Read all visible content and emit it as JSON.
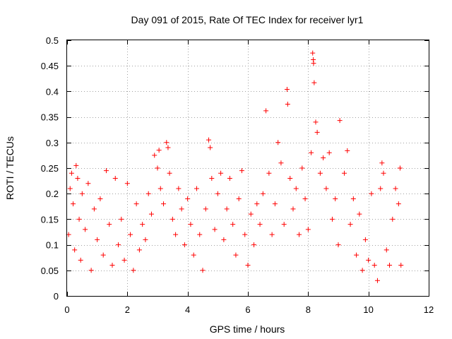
{
  "chart_data": {
    "type": "scatter",
    "title": "Day 091 of 2015, Rate Of TEC Index for receiver lyr1",
    "xlabel": "GPS time / hours",
    "ylabel": "ROTI / TECUs",
    "xlim": [
      0,
      12
    ],
    "ylim": [
      0,
      0.5
    ],
    "xticks": [
      0,
      2,
      4,
      6,
      8,
      10,
      12
    ],
    "xtick_labels": [
      "0",
      "2",
      "4",
      "6",
      "8",
      "10",
      "12"
    ],
    "yticks": [
      0,
      0.05,
      0.1,
      0.15,
      0.2,
      0.25,
      0.3,
      0.35,
      0.4,
      0.45,
      0.5
    ],
    "ytick_labels": [
      "0",
      "0.05",
      "0.1",
      "0.15",
      "0.2",
      "0.25",
      "0.3",
      "0.35",
      "0.4",
      "0.45",
      "0.5"
    ],
    "grid": true,
    "marker": "plus",
    "color": "#ff0000",
    "series": [
      {
        "name": "lyr1",
        "points": [
          [
            0.05,
            0.12
          ],
          [
            0.1,
            0.21
          ],
          [
            0.15,
            0.24
          ],
          [
            0.2,
            0.18
          ],
          [
            0.25,
            0.09
          ],
          [
            0.3,
            0.255
          ],
          [
            0.35,
            0.23
          ],
          [
            0.4,
            0.15
          ],
          [
            0.45,
            0.07
          ],
          [
            0.5,
            0.2
          ],
          [
            0.6,
            0.13
          ],
          [
            0.7,
            0.22
          ],
          [
            0.8,
            0.05
          ],
          [
            0.9,
            0.17
          ],
          [
            1.0,
            0.11
          ],
          [
            1.1,
            0.19
          ],
          [
            1.2,
            0.08
          ],
          [
            1.3,
            0.245
          ],
          [
            1.4,
            0.14
          ],
          [
            1.5,
            0.06
          ],
          [
            1.6,
            0.23
          ],
          [
            1.7,
            0.1
          ],
          [
            1.8,
            0.15
          ],
          [
            1.9,
            0.07
          ],
          [
            2.0,
            0.22
          ],
          [
            2.1,
            0.12
          ],
          [
            2.2,
            0.05
          ],
          [
            2.3,
            0.18
          ],
          [
            2.4,
            0.09
          ],
          [
            2.5,
            0.14
          ],
          [
            2.6,
            0.11
          ],
          [
            2.7,
            0.2
          ],
          [
            2.8,
            0.16
          ],
          [
            2.9,
            0.275
          ],
          [
            3.0,
            0.25
          ],
          [
            3.05,
            0.285
          ],
          [
            3.1,
            0.21
          ],
          [
            3.2,
            0.18
          ],
          [
            3.3,
            0.3
          ],
          [
            3.35,
            0.29
          ],
          [
            3.4,
            0.24
          ],
          [
            3.5,
            0.15
          ],
          [
            3.6,
            0.12
          ],
          [
            3.7,
            0.21
          ],
          [
            3.8,
            0.17
          ],
          [
            3.9,
            0.1
          ],
          [
            4.0,
            0.19
          ],
          [
            4.1,
            0.14
          ],
          [
            4.2,
            0.08
          ],
          [
            4.3,
            0.21
          ],
          [
            4.4,
            0.12
          ],
          [
            4.5,
            0.05
          ],
          [
            4.6,
            0.17
          ],
          [
            4.7,
            0.305
          ],
          [
            4.75,
            0.29
          ],
          [
            4.8,
            0.23
          ],
          [
            4.9,
            0.13
          ],
          [
            5.0,
            0.2
          ],
          [
            5.1,
            0.24
          ],
          [
            5.2,
            0.11
          ],
          [
            5.3,
            0.17
          ],
          [
            5.4,
            0.23
          ],
          [
            5.5,
            0.14
          ],
          [
            5.6,
            0.08
          ],
          [
            5.7,
            0.19
          ],
          [
            5.8,
            0.245
          ],
          [
            5.9,
            0.12
          ],
          [
            6.0,
            0.06
          ],
          [
            6.1,
            0.16
          ],
          [
            6.2,
            0.1
          ],
          [
            6.3,
            0.18
          ],
          [
            6.4,
            0.14
          ],
          [
            6.5,
            0.2
          ],
          [
            6.6,
            0.362
          ],
          [
            6.7,
            0.24
          ],
          [
            6.8,
            0.12
          ],
          [
            6.9,
            0.18
          ],
          [
            7.0,
            0.3
          ],
          [
            7.1,
            0.26
          ],
          [
            7.2,
            0.14
          ],
          [
            7.3,
            0.404
          ],
          [
            7.32,
            0.375
          ],
          [
            7.4,
            0.23
          ],
          [
            7.5,
            0.17
          ],
          [
            7.6,
            0.21
          ],
          [
            7.7,
            0.12
          ],
          [
            7.8,
            0.25
          ],
          [
            7.9,
            0.19
          ],
          [
            8.0,
            0.13
          ],
          [
            8.1,
            0.28
          ],
          [
            8.15,
            0.475
          ],
          [
            8.17,
            0.462
          ],
          [
            8.18,
            0.455
          ],
          [
            8.2,
            0.417
          ],
          [
            8.25,
            0.34
          ],
          [
            8.3,
            0.32
          ],
          [
            8.4,
            0.24
          ],
          [
            8.5,
            0.27
          ],
          [
            8.6,
            0.21
          ],
          [
            8.7,
            0.28
          ],
          [
            8.8,
            0.15
          ],
          [
            8.9,
            0.19
          ],
          [
            9.0,
            0.1
          ],
          [
            9.05,
            0.343
          ],
          [
            9.2,
            0.24
          ],
          [
            9.3,
            0.284
          ],
          [
            9.4,
            0.14
          ],
          [
            9.5,
            0.19
          ],
          [
            9.6,
            0.08
          ],
          [
            9.7,
            0.16
          ],
          [
            9.8,
            0.05
          ],
          [
            9.9,
            0.11
          ],
          [
            10.0,
            0.07
          ],
          [
            10.1,
            0.2
          ],
          [
            10.2,
            0.06
          ],
          [
            10.3,
            0.03
          ],
          [
            10.4,
            0.21
          ],
          [
            10.45,
            0.26
          ],
          [
            10.5,
            0.24
          ],
          [
            10.6,
            0.09
          ],
          [
            10.7,
            0.06
          ],
          [
            10.8,
            0.15
          ],
          [
            10.9,
            0.21
          ],
          [
            11.0,
            0.18
          ],
          [
            11.05,
            0.25
          ],
          [
            11.08,
            0.06
          ]
        ]
      }
    ]
  }
}
